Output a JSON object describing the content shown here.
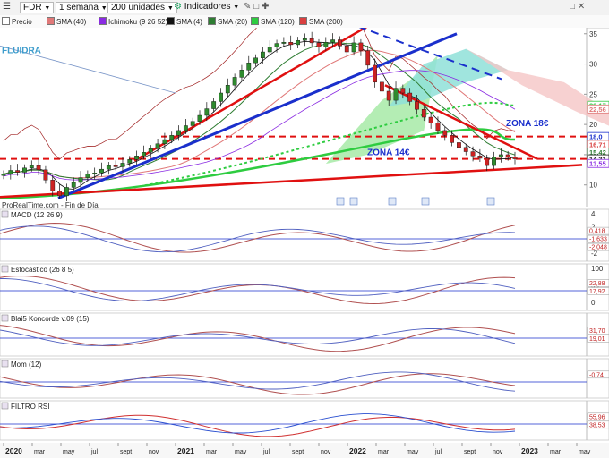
{
  "toolbar": {
    "symbol": "FDR",
    "period": "1 semana",
    "units": "200 unidades",
    "indicators": "Indicadores"
  },
  "legend": [
    {
      "label": "Precio",
      "color": "#ffffff"
    },
    {
      "label": "SMA (40)",
      "color": "#e07878"
    },
    {
      "label": "Ichimoku (9 26 52)",
      "color": "#8a2be2"
    },
    {
      "label": "SMA (4)",
      "color": "#111111"
    },
    {
      "label": "SMA (20)",
      "color": "#2e7d32"
    },
    {
      "label": "SMA (120)",
      "color": "#2ecc40"
    },
    {
      "label": "SMA (200)",
      "color": "#d94040"
    }
  ],
  "colors": {
    "up_candle": "#2e8b2e",
    "down_candle": "#cc2222",
    "trend_blue": "#1a2fcc",
    "trend_red": "#e01010",
    "support_red_dash": "#e01010",
    "cloud_green": "#9be79b",
    "cloud_cyan": "#8fe0d8",
    "cloud_pink": "#f5c6c6",
    "annotation_blue": "#1a2fcc",
    "background": "#ffffff"
  },
  "annotations": {
    "zona_high": "ZONA 18€",
    "zona_low": "ZONA 14€",
    "fluidra": "FLUIDRA",
    "source": "ProRealTime.com - Fin de Día"
  },
  "price_axis_labels": [
    "35",
    "30",
    "25",
    "20",
    "15",
    "10"
  ],
  "price_tags": [
    {
      "text": "23,17",
      "value": 23.17,
      "color": "#2ecc40"
    },
    {
      "text": "22,56",
      "value": 22.56,
      "color": "#e07878"
    },
    {
      "text": "18,0",
      "value": 18.0,
      "color": "#1a2fcc"
    },
    {
      "text": "16,71",
      "value": 16.71,
      "color": "#d94040"
    },
    {
      "text": "15,42",
      "value": 15.42,
      "color": "#2e7d32"
    },
    {
      "text": "14,31",
      "value": 14.31,
      "color": "#222222"
    },
    {
      "text": "13,55",
      "value": 13.55,
      "color": "#8a2be2"
    }
  ],
  "x_axis_labels": [
    "2020",
    "mar",
    "may",
    "jul",
    "sept",
    "nov",
    "2021",
    "mar",
    "may",
    "jul",
    "sept",
    "nov",
    "2022",
    "mar",
    "may",
    "jul",
    "sept",
    "nov",
    "2023",
    "mar",
    "may"
  ],
  "panels": [
    {
      "title": "MACD (12 26 9)",
      "axis_labels": [
        "4",
        "2",
        "0",
        "-2"
      ],
      "value_tags": [
        "0,418",
        "-1,633",
        "-2,048"
      ]
    },
    {
      "title": "Estocástico (26 8 5)",
      "axis_labels": [
        "100",
        "50",
        "0"
      ],
      "value_tags": [
        "22,88",
        "17,92"
      ]
    },
    {
      "title": "Blai5 Koncorde v.09 (15)",
      "axis_labels": [],
      "value_tags": [
        "31,70",
        "19,01"
      ]
    },
    {
      "title": "Mom (12)",
      "axis_labels": [],
      "value_tags": [
        "-0,74"
      ]
    },
    {
      "title": "FILTRO RSI",
      "axis_labels": [],
      "value_tags": [
        "55,96",
        "38,53"
      ]
    }
  ],
  "chart_data": {
    "type": "candlestick",
    "title": "FDR",
    "x_range": [
      "2020",
      "may 2023"
    ],
    "ylim": [
      7,
      36
    ],
    "weekly_close": [
      11.8,
      12.4,
      12.1,
      12.8,
      13.2,
      12.5,
      10.8,
      9.0,
      8.2,
      9.6,
      10.4,
      11.2,
      11.8,
      12.0,
      12.6,
      13.2,
      13.0,
      13.6,
      14.2,
      14.8,
      15.4,
      16.0,
      16.8,
      17.5,
      18.2,
      19.0,
      19.8,
      20.5,
      21.5,
      22.6,
      23.8,
      25.2,
      26.5,
      27.8,
      29.0,
      30.2,
      31.0,
      32.0,
      32.8,
      33.4,
      33.6,
      33.2,
      33.9,
      34.2,
      33.5,
      32.8,
      33.6,
      34.0,
      33.0,
      32.0,
      33.5,
      32.2,
      29.8,
      27.0,
      25.5,
      24.0,
      26.0,
      25.2,
      23.8,
      22.5,
      21.2,
      20.2,
      19.0,
      18.2,
      17.0,
      16.2,
      15.5,
      14.8,
      14.4,
      13.2,
      14.6,
      15.0,
      14.6,
      14.31
    ]
  }
}
